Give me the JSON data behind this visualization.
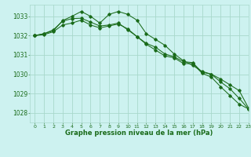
{
  "title": "Graphe pression niveau de la mer (hPa)",
  "bg_color": "#cdf2f0",
  "grid_color": "#a8d8cc",
  "line_color": "#1a6b1a",
  "xlim": [
    -0.5,
    23
  ],
  "ylim": [
    1027.5,
    1033.6
  ],
  "yticks": [
    1028,
    1029,
    1030,
    1031,
    1032,
    1033
  ],
  "xticks": [
    0,
    1,
    2,
    3,
    4,
    5,
    6,
    7,
    8,
    9,
    10,
    11,
    12,
    13,
    14,
    15,
    16,
    17,
    18,
    19,
    20,
    21,
    22,
    23
  ],
  "series1": [
    1032.0,
    1032.1,
    1032.25,
    1032.78,
    1033.0,
    1033.25,
    1033.0,
    1032.65,
    1033.1,
    1033.25,
    1033.1,
    1032.8,
    1032.1,
    1031.8,
    1031.5,
    1031.05,
    1030.7,
    1030.45,
    1030.15,
    1030.0,
    1029.75,
    1029.45,
    1029.15,
    1028.25
  ],
  "series2": [
    1032.0,
    1032.05,
    1032.2,
    1032.55,
    1032.65,
    1032.8,
    1032.55,
    1032.4,
    1032.5,
    1032.6,
    1032.35,
    1031.95,
    1031.55,
    1031.25,
    1030.95,
    1030.85,
    1030.55,
    1030.55,
    1030.05,
    1029.85,
    1029.35,
    1028.9,
    1028.45,
    1028.2
  ],
  "series3": [
    1032.0,
    1032.1,
    1032.3,
    1032.75,
    1032.88,
    1032.9,
    1032.7,
    1032.5,
    1032.55,
    1032.65,
    1032.3,
    1031.95,
    1031.6,
    1031.4,
    1031.05,
    1030.9,
    1030.65,
    1030.6,
    1030.1,
    1030.0,
    1029.6,
    1029.25,
    1028.75,
    1028.2
  ]
}
